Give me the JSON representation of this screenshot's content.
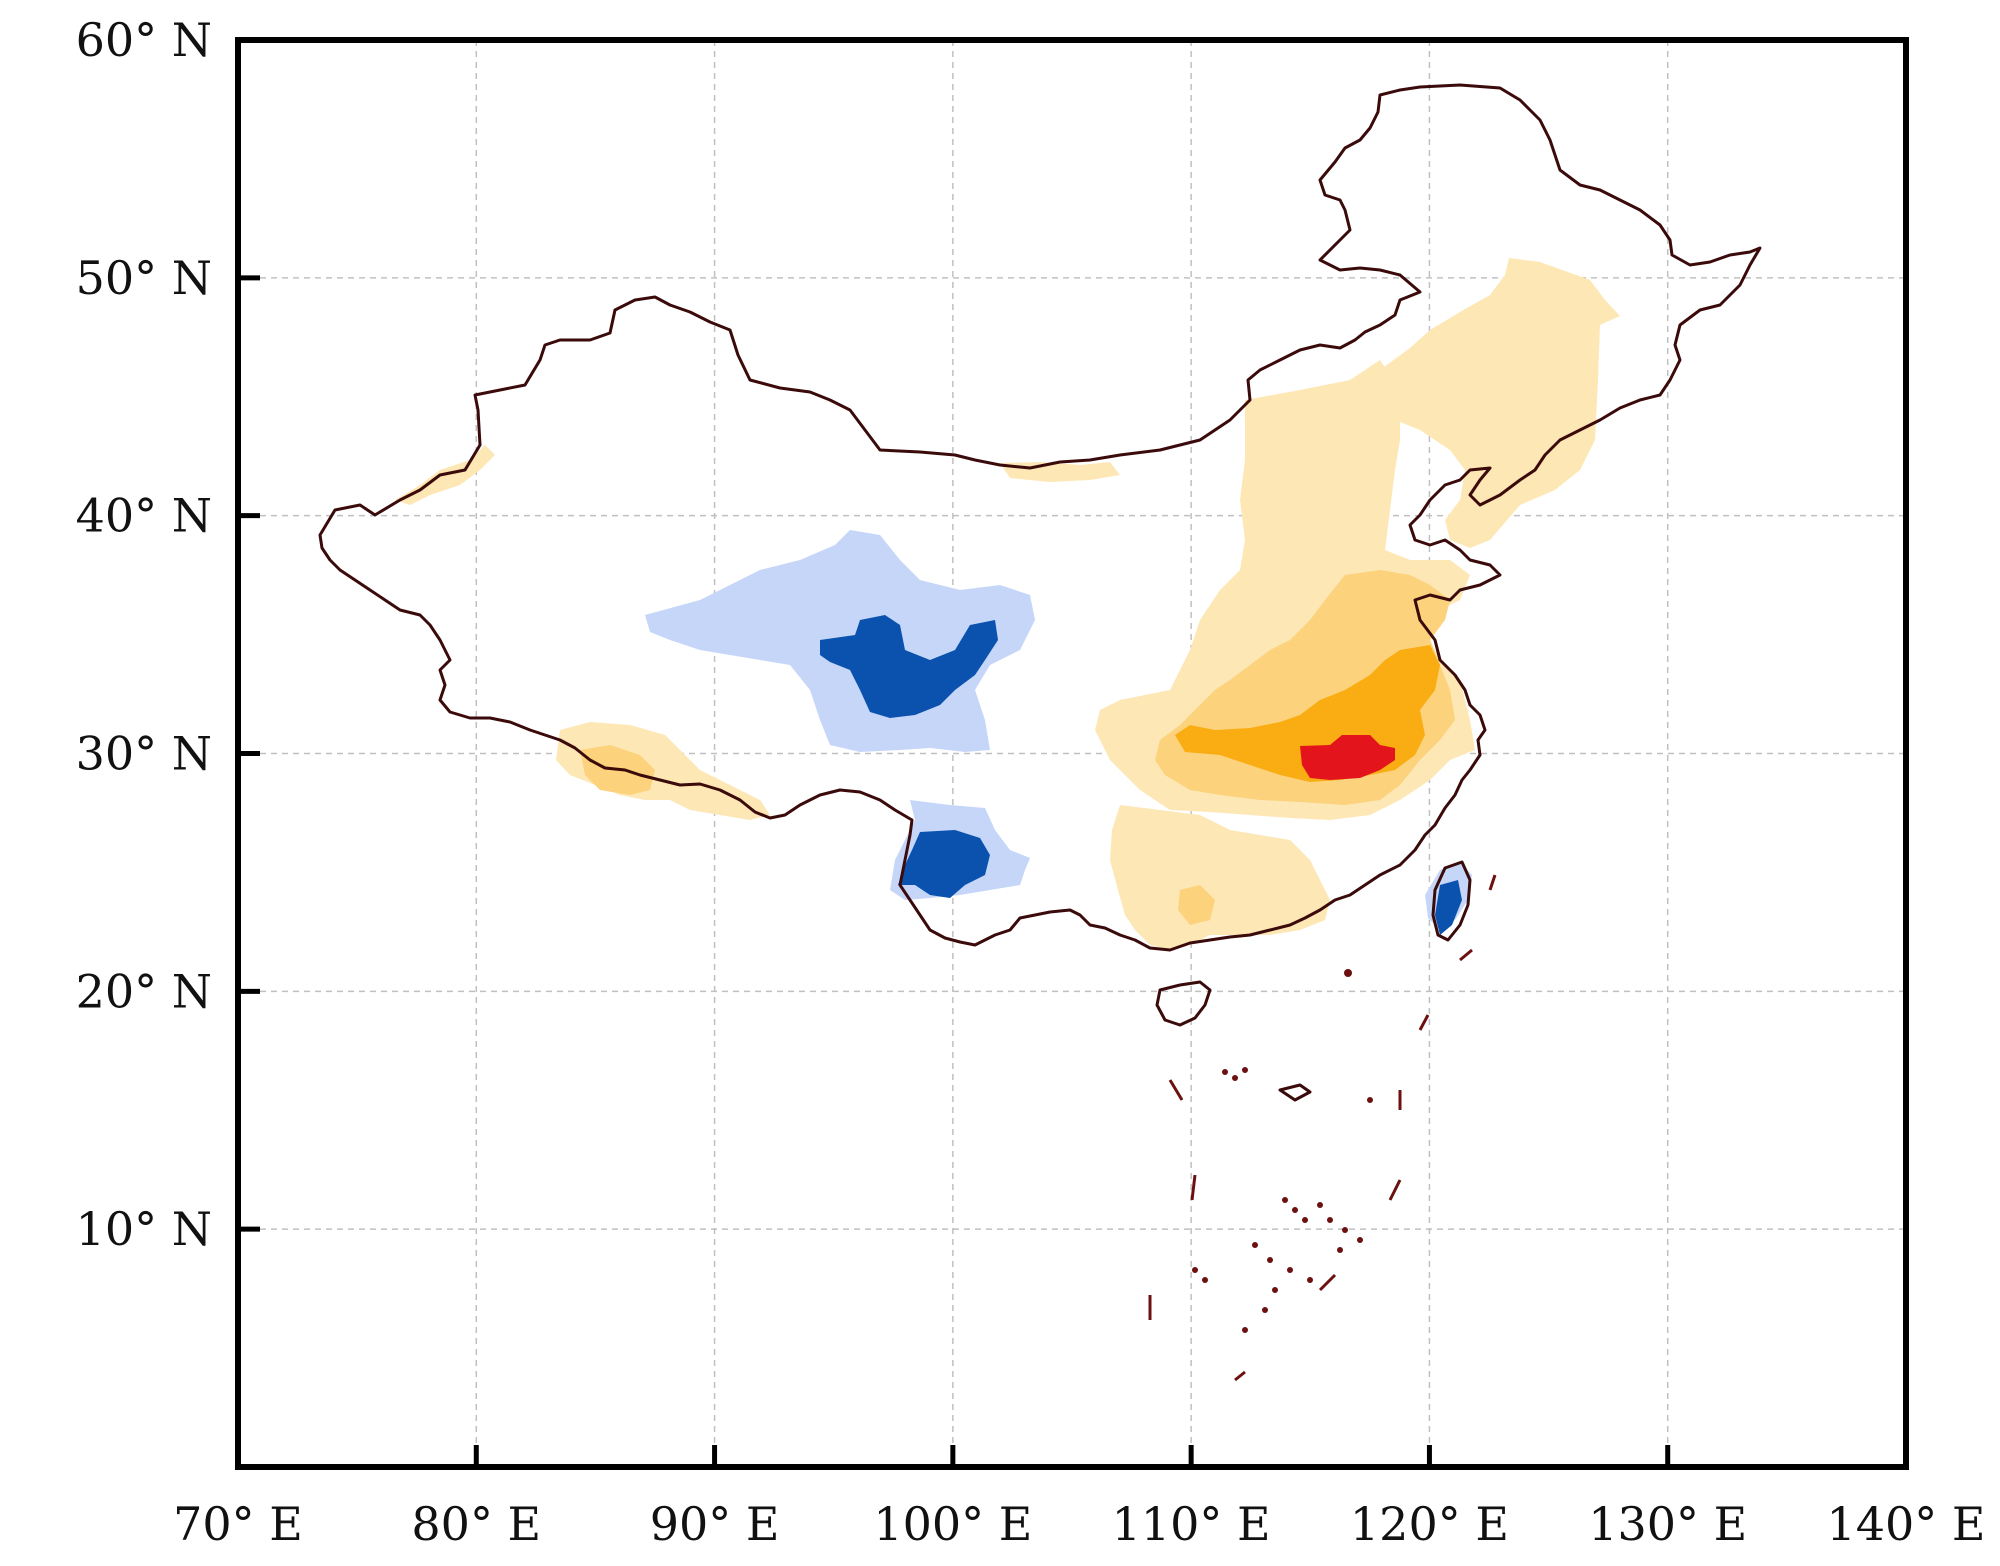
{
  "map": {
    "x_ticks": [
      {
        "lon": 70,
        "label": "70° E"
      },
      {
        "lon": 80,
        "label": "80° E"
      },
      {
        "lon": 90,
        "label": "90° E"
      },
      {
        "lon": 100,
        "label": "100° E"
      },
      {
        "lon": 110,
        "label": "110° E"
      },
      {
        "lon": 120,
        "label": "120° E"
      },
      {
        "lon": 130,
        "label": "130° E"
      },
      {
        "lon": 140,
        "label": "140° E"
      }
    ],
    "y_ticks": [
      {
        "lat": 60,
        "label": "60° N"
      },
      {
        "lat": 50,
        "label": "50° N"
      },
      {
        "lat": 40,
        "label": "40° N"
      },
      {
        "lat": 30,
        "label": "30° N"
      },
      {
        "lat": 20,
        "label": "20° N"
      },
      {
        "lat": 10,
        "label": "10° N"
      }
    ],
    "lon_range": [
      70,
      140
    ],
    "lat_range": [
      0,
      60
    ],
    "grid": true,
    "colors": {
      "boundary": "#3b0a0a",
      "grid": "#c0c0c0",
      "light_orange": "#fde7b5",
      "medium_orange": "#fcd27c",
      "orange": "#f9ad12",
      "red": "#e3141c",
      "light_blue": "#c5d6f9",
      "dark_blue": "#0a52ad"
    }
  }
}
